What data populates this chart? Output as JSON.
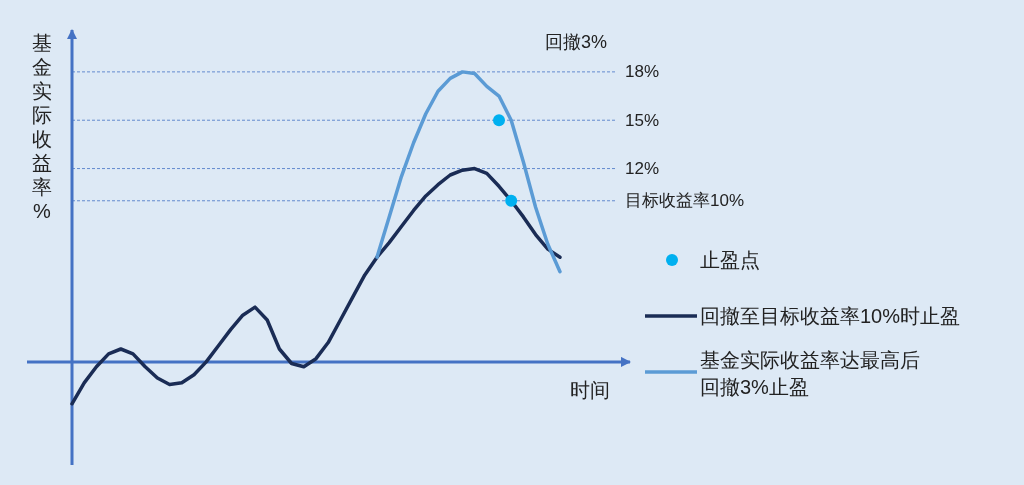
{
  "chart_data": {
    "type": "line",
    "xlabel": "时间",
    "ylabel": "基金实际收益率%",
    "ylim": [
      -6.4,
      20.6
    ],
    "yticks": [
      {
        "value": 18,
        "label": "18%"
      },
      {
        "value": 15,
        "label": "15%"
      },
      {
        "value": 12,
        "label": "12%"
      },
      {
        "value": 10,
        "label": "目标收益率10%"
      }
    ],
    "grid": "y",
    "categories": [
      null,
      null,
      null,
      null,
      null,
      null,
      null,
      null,
      null,
      null,
      null,
      null,
      null,
      null,
      null,
      null,
      null,
      null,
      null,
      null,
      null,
      null,
      null,
      null,
      null,
      null,
      null,
      null,
      null,
      null,
      null,
      null,
      null,
      null,
      null,
      null,
      null,
      null,
      null,
      null,
      null
    ],
    "series": [
      {
        "name": "止盈点",
        "type": "scatter",
        "color": "#00b0f0",
        "values": [
          null,
          null,
          null,
          null,
          null,
          null,
          null,
          null,
          null,
          null,
          null,
          null,
          null,
          null,
          null,
          null,
          null,
          null,
          null,
          null,
          null,
          null,
          null,
          null,
          null,
          null,
          null,
          null,
          null,
          null,
          null,
          null,
          null,
          null,
          null,
          15,
          10,
          null,
          null,
          null,
          null
        ]
      },
      {
        "name": "回撤至目标收益率10%时止盈",
        "color": "#1a2c55",
        "values": [
          -2.6,
          -1.3,
          -0.3,
          0.5,
          0.8,
          0.5,
          -0.3,
          -1.0,
          -1.4,
          -1.3,
          -0.8,
          0.0,
          1.0,
          2.0,
          2.9,
          3.4,
          2.6,
          0.8,
          -0.1,
          -0.3,
          0.2,
          1.2,
          2.6,
          4.0,
          5.4,
          6.5,
          7.4,
          8.4,
          9.4,
          10.3,
          11.0,
          11.6,
          11.9,
          12.0,
          11.7,
          10.9,
          10.0,
          9.0,
          7.9,
          7.0,
          6.5
        ]
      },
      {
        "name": "基金实际收益率达最高后回撤3%止盈",
        "color": "#5b9bd5",
        "values": [
          null,
          null,
          null,
          null,
          null,
          null,
          null,
          null,
          null,
          null,
          null,
          null,
          null,
          null,
          null,
          null,
          null,
          null,
          null,
          null,
          null,
          null,
          null,
          null,
          null,
          6.5,
          9.0,
          11.5,
          13.6,
          15.4,
          16.8,
          17.6,
          18.0,
          17.9,
          17.1,
          16.5,
          15.0,
          12.4,
          9.6,
          7.3,
          5.6
        ]
      }
    ],
    "ref_lines": [
      {
        "axis": "y",
        "value": 0,
        "color": "#4472c4"
      }
    ],
    "annotations": [
      "回撤3%"
    ],
    "legend": "right",
    "line_style": "solid"
  }
}
